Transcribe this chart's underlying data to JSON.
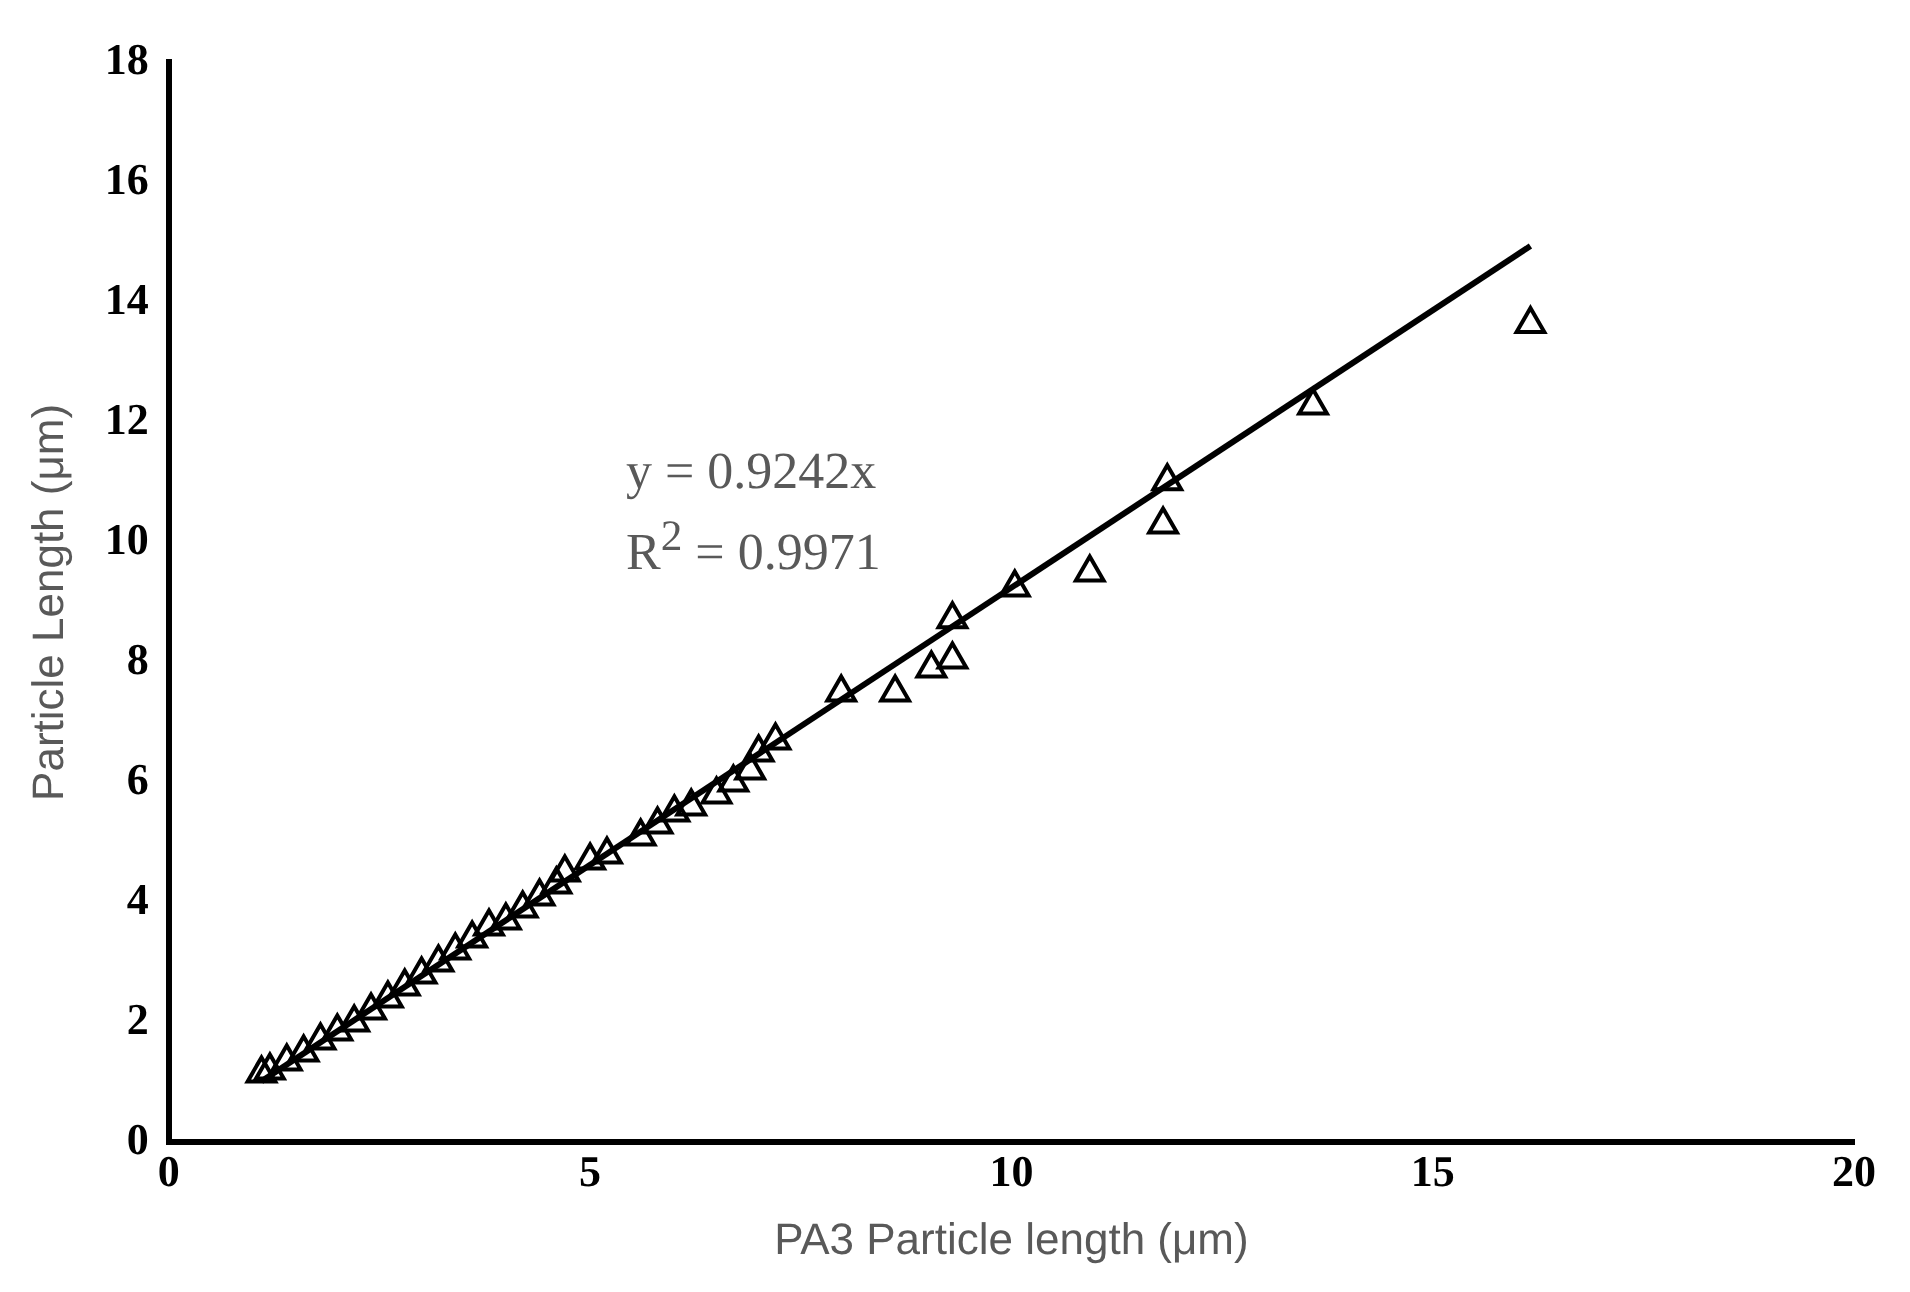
{
  "chart_data": {
    "type": "scatter",
    "xlabel": "PA3 Particle length (μm)",
    "ylabel": "Particle Length (μm)",
    "xlim": [
      0,
      20
    ],
    "xticks": [
      0,
      5,
      10,
      15,
      20
    ],
    "ylim": [
      0,
      18
    ],
    "yticks": [
      0,
      2,
      4,
      6,
      8,
      10,
      12,
      14,
      16,
      18
    ],
    "grid": false,
    "legend": false,
    "marker": "triangle",
    "annotations": [
      "y = 0.9242x",
      "R$^{2}$ = 0.9971"
    ],
    "series": [
      {
        "color": "#000000",
        "x": [
          1.1,
          1.2,
          1.4,
          1.6,
          1.8,
          2.0,
          2.2,
          2.4,
          2.6,
          2.8,
          3.0,
          3.2,
          3.4,
          3.6,
          3.8,
          4.0,
          4.2,
          4.4,
          4.6,
          4.7,
          5.0,
          5.2,
          5.6,
          5.8,
          6.0,
          6.2,
          6.5,
          6.7,
          6.9,
          7.0,
          7.2,
          7.98,
          8.62,
          9.05,
          9.3,
          9.3,
          10.04,
          10.93,
          11.8,
          11.85,
          13.58,
          16.16
        ],
        "values": [
          1.15,
          1.2,
          1.35,
          1.5,
          1.7,
          1.85,
          2.0,
          2.2,
          2.4,
          2.6,
          2.8,
          3.0,
          3.2,
          3.4,
          3.6,
          3.7,
          3.9,
          4.1,
          4.3,
          4.5,
          4.7,
          4.8,
          5.1,
          5.3,
          5.5,
          5.6,
          5.8,
          6.0,
          6.2,
          6.5,
          6.7,
          7.5,
          7.5,
          7.9,
          8.05,
          8.72,
          9.25,
          9.5,
          10.3,
          11.02,
          12.28,
          13.64
        ]
      },
      {
        "type": "line",
        "marker": "none",
        "color": "#000000",
        "x": [
          1.1,
          16.16
        ],
        "values": [
          1.02,
          14.94
        ]
      }
    ]
  }
}
